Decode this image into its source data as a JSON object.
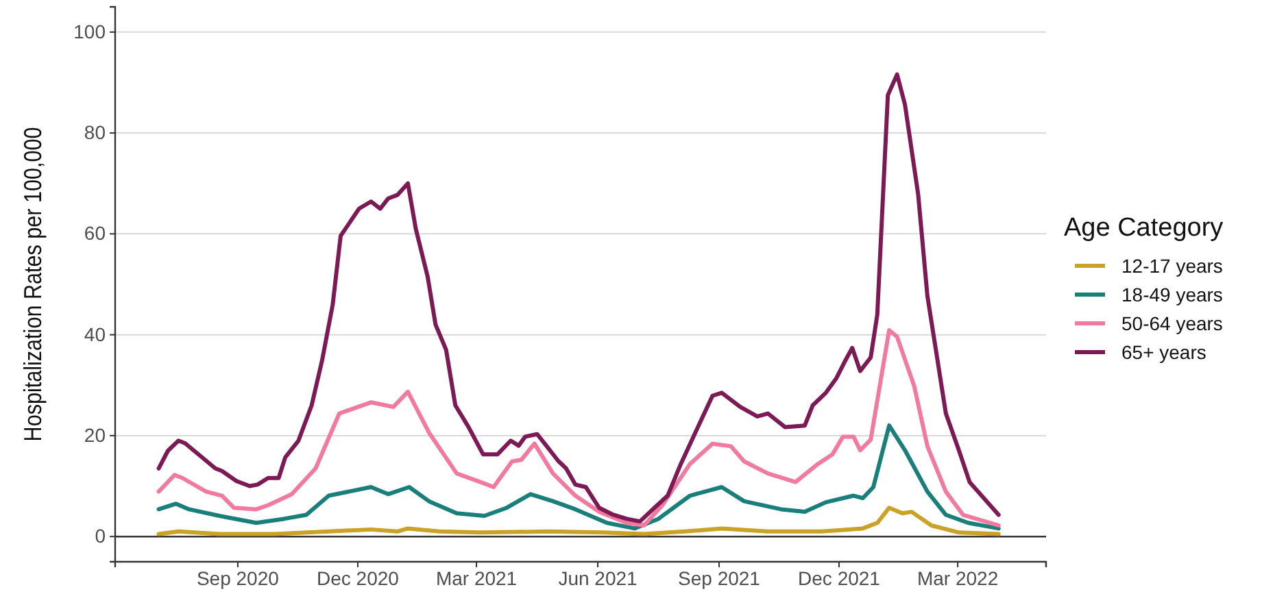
{
  "chart_data": {
    "type": "line",
    "ylabel": "Hospitalization Rates per 100,000",
    "legend_title": "Age Category",
    "legend": "right",
    "grid": "y",
    "line_style": "solid",
    "xlim": [
      "2020-05-31",
      "2022-05-07"
    ],
    "xticks": [
      {
        "value": "2020-09-01",
        "label": "Sep 2020"
      },
      {
        "value": "2020-12-01",
        "label": "Dec 2020"
      },
      {
        "value": "2021-03-01",
        "label": "Mar 2021"
      },
      {
        "value": "2021-06-01",
        "label": "Jun 2021"
      },
      {
        "value": "2021-09-01",
        "label": "Sep 2021"
      },
      {
        "value": "2021-12-01",
        "label": "Dec 2021"
      },
      {
        "value": "2022-03-01",
        "label": "Mar 2022"
      }
    ],
    "ylim": [
      -5,
      105
    ],
    "yticks": [
      0,
      20,
      40,
      60,
      80,
      100
    ],
    "ref_lines": [
      {
        "axis": "y",
        "value": 0,
        "color": "#333333"
      }
    ],
    "series": [
      {
        "name": "12-17 years",
        "color": "#c9a227",
        "x": [
          "2020-07-03",
          "2020-07-18",
          "2020-08-18",
          "2020-09-29",
          "2020-11-09",
          "2020-12-11",
          "2020-12-31",
          "2021-01-08",
          "2021-02-01",
          "2021-03-04",
          "2021-04-25",
          "2021-06-05",
          "2021-07-06",
          "2021-08-06",
          "2021-09-03",
          "2021-10-08",
          "2021-11-18",
          "2021-12-19",
          "2021-12-30",
          "2022-01-08",
          "2022-01-18",
          "2022-01-25",
          "2022-02-09",
          "2022-03-02",
          "2022-04-01"
        ],
        "values": [
          0.5,
          1,
          0.5,
          0.5,
          1,
          1.4,
          1,
          1.6,
          1,
          0.8,
          1,
          0.8,
          0.5,
          1,
          1.6,
          1,
          1,
          1.6,
          2.7,
          5.7,
          4.6,
          4.9,
          2.2,
          0.8,
          0.5
        ]
      },
      {
        "name": "18-49 years",
        "color": "#1a7f7a",
        "x": [
          "2020-07-03",
          "2020-07-16",
          "2020-07-26",
          "2020-08-18",
          "2020-09-15",
          "2020-10-06",
          "2020-10-23",
          "2020-11-09",
          "2020-12-11",
          "2020-12-24",
          "2021-01-09",
          "2021-01-24",
          "2021-02-14",
          "2021-03-07",
          "2021-03-24",
          "2021-04-11",
          "2021-04-28",
          "2021-05-15",
          "2021-06-08",
          "2021-06-29",
          "2021-07-17",
          "2021-08-10",
          "2021-09-03",
          "2021-09-20",
          "2021-10-18",
          "2021-11-05",
          "2021-11-21",
          "2021-12-12",
          "2021-12-19",
          "2021-12-27",
          "2022-01-08",
          "2022-01-20",
          "2022-02-06",
          "2022-02-20",
          "2022-03-09",
          "2022-04-01"
        ],
        "values": [
          5.4,
          6.5,
          5.4,
          4.1,
          2.7,
          3.5,
          4.3,
          8.1,
          9.8,
          8.4,
          9.8,
          7,
          4.6,
          4.1,
          5.7,
          8.4,
          7,
          5.4,
          2.7,
          1.6,
          3.5,
          8.1,
          9.8,
          7,
          5.4,
          4.9,
          6.8,
          8.1,
          7.6,
          9.8,
          22,
          17.1,
          8.9,
          4.3,
          2.7,
          1.6
        ]
      },
      {
        "name": "50-64 years",
        "color": "#f07aa0",
        "x": [
          "2020-07-03",
          "2020-07-15",
          "2020-07-21",
          "2020-08-08",
          "2020-08-20",
          "2020-08-29",
          "2020-09-15",
          "2020-09-24",
          "2020-10-12",
          "2020-10-30",
          "2020-11-17",
          "2020-12-11",
          "2020-12-28",
          "2021-01-08",
          "2021-01-24",
          "2021-02-14",
          "2021-03-04",
          "2021-03-14",
          "2021-03-28",
          "2021-04-04",
          "2021-04-14",
          "2021-04-28",
          "2021-05-15",
          "2021-06-02",
          "2021-06-23",
          "2021-07-06",
          "2021-07-20",
          "2021-08-10",
          "2021-08-27",
          "2021-09-10",
          "2021-09-20",
          "2021-10-08",
          "2021-10-29",
          "2021-11-15",
          "2021-11-26",
          "2021-12-04",
          "2021-12-12",
          "2021-12-17",
          "2021-12-25",
          "2022-01-08",
          "2022-01-14",
          "2022-01-27",
          "2022-02-06",
          "2022-02-20",
          "2022-03-05",
          "2022-04-01"
        ],
        "values": [
          8.9,
          12.2,
          11.6,
          8.9,
          8.1,
          5.7,
          5.4,
          6.2,
          8.4,
          13.5,
          24.4,
          26.6,
          25.7,
          28.7,
          20.6,
          12.5,
          10.8,
          9.8,
          14.9,
          15.2,
          18.4,
          12.5,
          8.1,
          4.9,
          2.7,
          2.2,
          6.2,
          14.4,
          18.4,
          17.9,
          14.9,
          12.5,
          10.8,
          14.4,
          16.3,
          19.8,
          19.8,
          17.1,
          19.2,
          40.9,
          39.6,
          29.8,
          17.9,
          8.9,
          4.3,
          2.2
        ]
      },
      {
        "name": "65+ years",
        "color": "#7b1a55",
        "x": [
          "2020-07-03",
          "2020-07-10",
          "2020-07-18",
          "2020-07-23",
          "2020-08-15",
          "2020-08-20",
          "2020-08-31",
          "2020-09-10",
          "2020-09-16",
          "2020-09-24",
          "2020-10-02",
          "2020-10-07",
          "2020-10-17",
          "2020-10-27",
          "2020-11-04",
          "2020-11-12",
          "2020-11-18",
          "2020-12-02",
          "2020-12-11",
          "2020-12-18",
          "2020-12-24",
          "2020-12-31",
          "2021-01-08",
          "2021-01-14",
          "2021-01-23",
          "2021-01-29",
          "2021-02-06",
          "2021-02-13",
          "2021-02-23",
          "2021-03-06",
          "2021-03-17",
          "2021-03-27",
          "2021-04-02",
          "2021-04-07",
          "2021-04-16",
          "2021-04-23",
          "2021-05-02",
          "2021-05-08",
          "2021-05-15",
          "2021-05-23",
          "2021-06-02",
          "2021-06-12",
          "2021-06-23",
          "2021-07-03",
          "2021-07-14",
          "2021-07-24",
          "2021-08-03",
          "2021-08-14",
          "2021-08-27",
          "2021-09-03",
          "2021-09-17",
          "2021-09-30",
          "2021-10-08",
          "2021-10-21",
          "2021-11-05",
          "2021-11-11",
          "2021-11-21",
          "2021-11-29",
          "2021-12-06",
          "2021-12-11",
          "2021-12-17",
          "2021-12-25",
          "2021-12-30",
          "2022-01-07",
          "2022-01-14",
          "2022-01-20",
          "2022-01-30",
          "2022-02-06",
          "2022-02-20",
          "2022-03-02",
          "2022-03-10",
          "2022-04-01"
        ],
        "values": [
          13.5,
          17,
          19,
          18.5,
          13.5,
          13,
          11,
          10,
          10.3,
          11.6,
          11.6,
          15.7,
          19,
          26,
          35,
          46,
          59.6,
          65,
          66.4,
          65,
          67,
          67.7,
          70,
          61,
          51.5,
          42,
          37,
          26,
          21.7,
          16.3,
          16.3,
          19,
          18,
          19.8,
          20.3,
          18,
          15,
          13.5,
          10.3,
          9.8,
          5.7,
          4.4,
          3.5,
          3,
          5.7,
          8.1,
          14.4,
          20.6,
          27.9,
          28.5,
          25.7,
          23.8,
          24.4,
          21.7,
          22,
          26,
          28.5,
          31.4,
          35,
          37.4,
          32.8,
          35.5,
          44,
          87.5,
          91.6,
          85.6,
          67.8,
          47.7,
          24.4,
          17,
          10.8,
          4.3
        ]
      }
    ]
  }
}
